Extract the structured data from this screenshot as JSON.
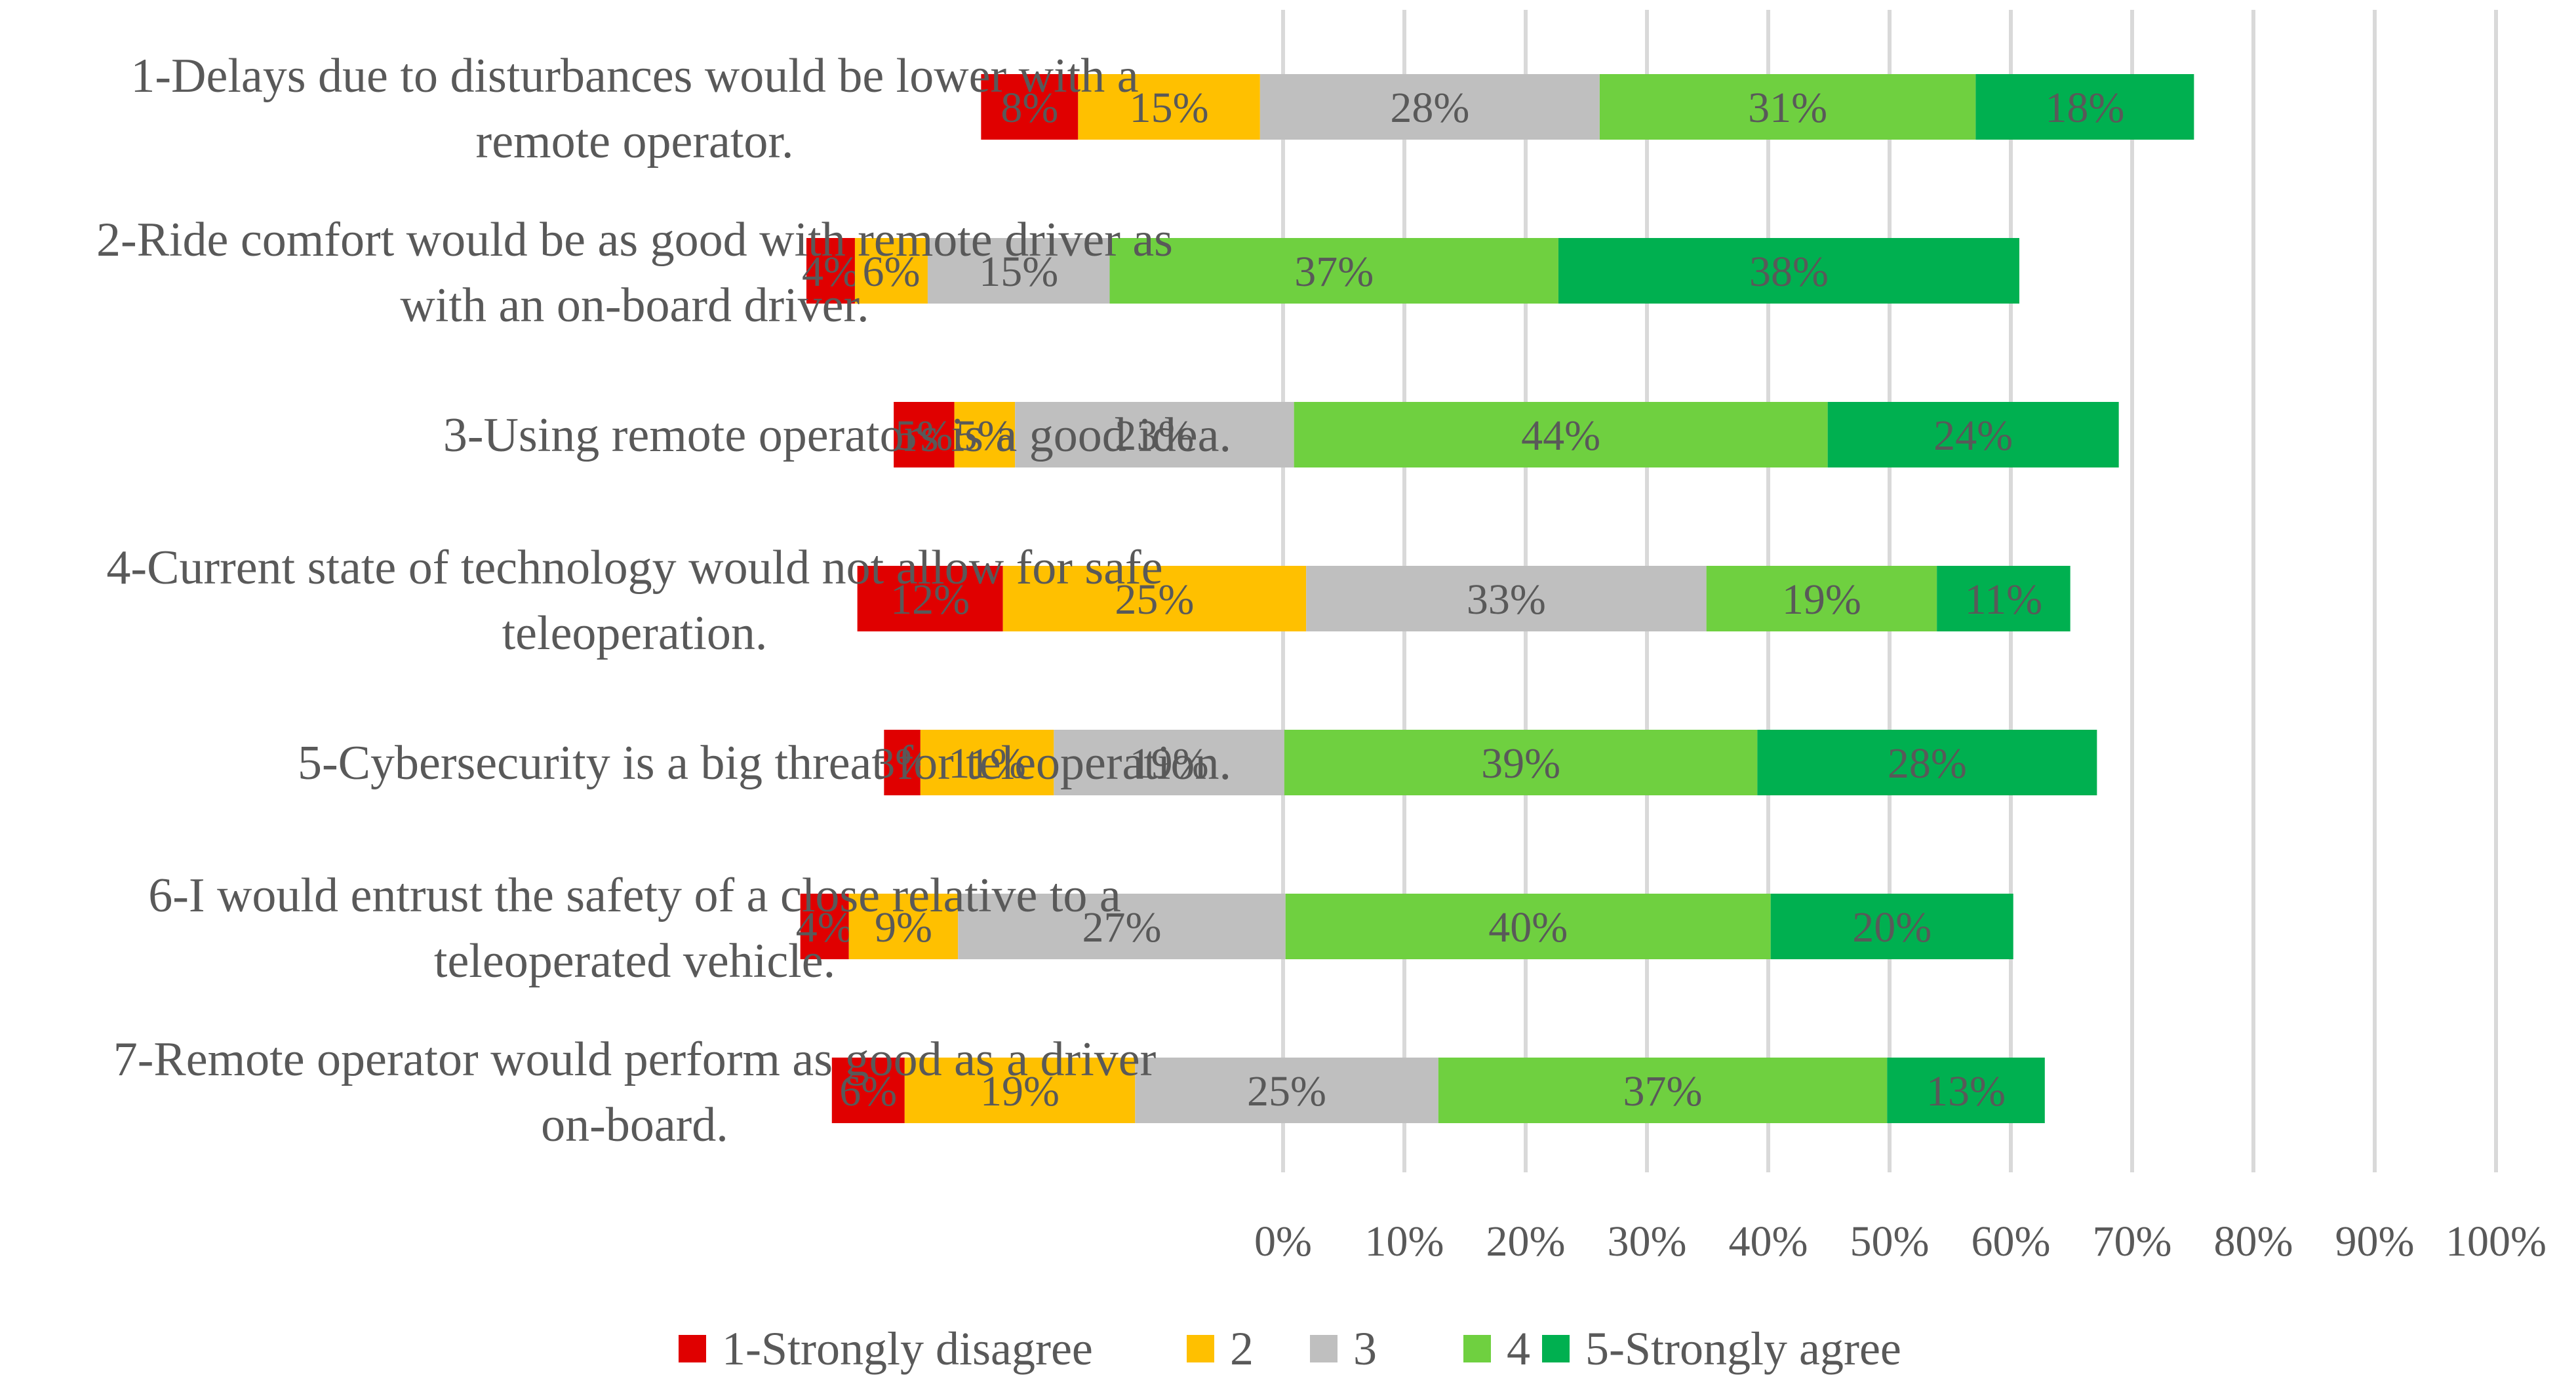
{
  "chart_data": {
    "type": "bar",
    "orientation": "horizontal",
    "stacked": true,
    "layout": "diverging",
    "title": "",
    "xlabel": "",
    "ylabel": "",
    "xlim": [
      0,
      100
    ],
    "grid": true,
    "legend_position": "bottom",
    "x_ticks": [
      "0%",
      "10%",
      "20%",
      "30%",
      "40%",
      "50%",
      "60%",
      "70%",
      "80%",
      "90%",
      "100%"
    ],
    "categories": [
      [
        "1-Delays due to disturbances would be lower with a",
        "remote operator."
      ],
      [
        "2-Ride comfort would be as good with remote driver as",
        "with an on-board driver."
      ],
      [
        "3-Using remote operators is a good idea."
      ],
      [
        "4-Current state of technology would not allow for safe",
        "teleoperation."
      ],
      [
        "5-Cybersecurity is a big threat for teleoperation."
      ],
      [
        "6-I would entrust the safety of a close relative to a",
        "teleoperated vehicle."
      ],
      [
        "7-Remote operator would perform as good as a driver",
        "on-board."
      ]
    ],
    "series": [
      {
        "name": "1-Strongly disagree",
        "color": "#e00000",
        "values": [
          8,
          4,
          5,
          12,
          3,
          4,
          6
        ],
        "labels": [
          "8%",
          "4%",
          "5%",
          "12%",
          "3%",
          "4%",
          "6%"
        ]
      },
      {
        "name": "2",
        "color": "#ffc000",
        "values": [
          15,
          6,
          5,
          25,
          11,
          9,
          19
        ],
        "labels": [
          "15%",
          "6%",
          "5%",
          "25%",
          "11%",
          "9%",
          "19%"
        ]
      },
      {
        "name": "3",
        "color": "#bfbfbf",
        "values": [
          28,
          15,
          23,
          33,
          19,
          27,
          25
        ],
        "labels": [
          "28%",
          "15%",
          "23%",
          "33%",
          "19%",
          "27%",
          "25%"
        ]
      },
      {
        "name": "4",
        "color": "#6fd040",
        "values": [
          31,
          37,
          44,
          19,
          39,
          40,
          37
        ],
        "labels": [
          "31%",
          "37%",
          "44%",
          "19%",
          "39%",
          "40%",
          "37%"
        ]
      },
      {
        "name": "5-Strongly agree",
        "color": "#00b050",
        "values": [
          18,
          38,
          24,
          11,
          28,
          20,
          13
        ],
        "labels": [
          "18%",
          "38%",
          "24%",
          "11%",
          "28%",
          "20%",
          "13%"
        ]
      }
    ],
    "offsets": [
      -24.9,
      -39.3,
      -32.1,
      -35.1,
      -32.9,
      -39.8,
      -37.2
    ]
  }
}
